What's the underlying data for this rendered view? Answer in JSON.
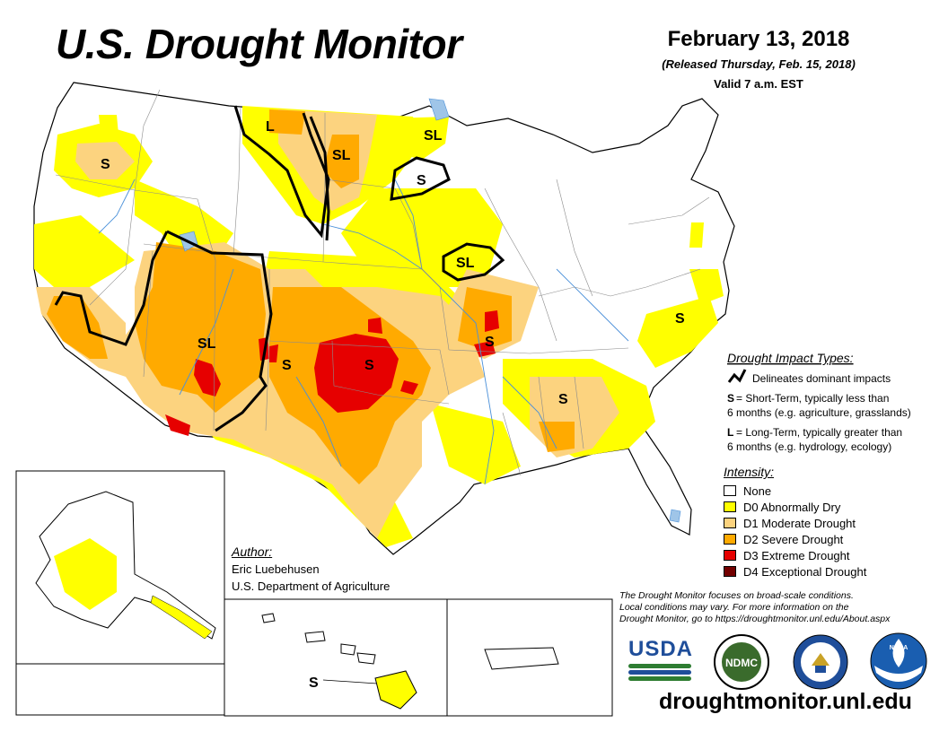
{
  "header": {
    "title": "U.S. Drought Monitor",
    "date": "February 13, 2018",
    "released": "(Released Thursday, Feb. 15, 2018)",
    "valid": "Valid 7 a.m. EST"
  },
  "impact_legend": {
    "heading": "Drought Impact Types:",
    "line_label": "Delineates dominant impacts",
    "s_key": "S",
    "s_text_1": "= Short-Term, typically less than",
    "s_text_2": "6 months (e.g. agriculture, grasslands)",
    "l_key": "L",
    "l_text_1": "= Long-Term, typically greater than",
    "l_text_2": "6 months (e.g. hydrology, ecology)"
  },
  "intensity_legend": {
    "heading": "Intensity:",
    "items": [
      {
        "label": "None",
        "color": "#ffffff"
      },
      {
        "label": "D0 Abnormally Dry",
        "color": "#ffff00"
      },
      {
        "label": "D1 Moderate Drought",
        "color": "#fcd37f"
      },
      {
        "label": "D2 Severe Drought",
        "color": "#ffaa00"
      },
      {
        "label": "D3 Extreme Drought",
        "color": "#e60000"
      },
      {
        "label": "D4 Exceptional Drought",
        "color": "#730000"
      }
    ]
  },
  "map_labels": {
    "montana_l": "L",
    "dakota_sl": "SL",
    "minnesota_sl": "SL",
    "minnesota_s": "S",
    "iowa_sl": "SL",
    "idaho_s": "S",
    "southwest_sl": "SL",
    "newmexico_s": "S",
    "oklahoma_s": "S",
    "missouri_s": "S",
    "virginia_s": "S",
    "southeast_s": "S",
    "hawaii_s": "S"
  },
  "author": {
    "heading": "Author:",
    "name": "Eric Luebehusen",
    "org": "U.S. Department of Agriculture"
  },
  "disclaimer": {
    "line1": "The Drought Monitor focuses on broad-scale conditions.",
    "line2": "Local conditions may vary. For more information on the",
    "line3": "Drought Monitor, go to https://droughtmonitor.unl.edu/About.aspx"
  },
  "logos": {
    "usda": "USDA",
    "ndmc": "NDMC",
    "noaa": "NOAA"
  },
  "footer": {
    "url": "droughtmonitor.unl.edu"
  },
  "colors": {
    "d0": "#ffff00",
    "d1": "#fcd37f",
    "d2": "#ffaa00",
    "d3": "#e60000",
    "d4": "#730000",
    "water": "#9fc5e8",
    "river": "#4a90d9"
  }
}
